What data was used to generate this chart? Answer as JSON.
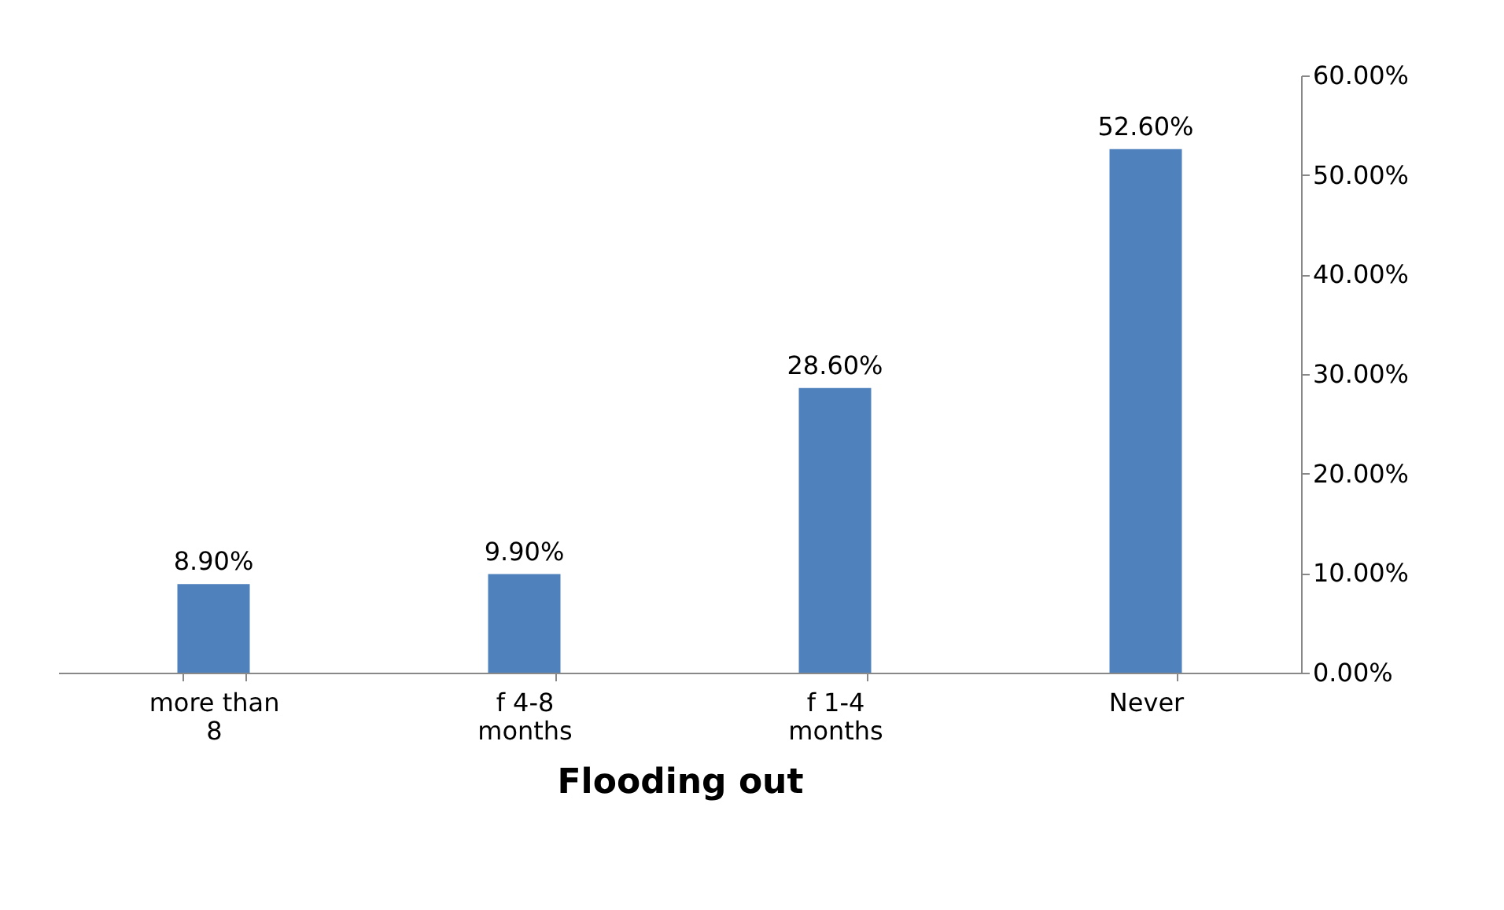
{
  "chart_data": {
    "type": "bar",
    "xlabel": "Flooding out",
    "categories": [
      "more than 8",
      "f 4-8 months",
      "f 1-4 months",
      "Never"
    ],
    "values": [
      8.9,
      9.9,
      28.6,
      52.6
    ],
    "color": "#4f81bd",
    "value_labels": [
      "8.90%",
      "9.90%",
      "28.60%",
      "52.60%"
    ],
    "ylim": [
      0,
      60
    ],
    "yticks": [
      {
        "value": 0,
        "label": "0.00%"
      },
      {
        "value": 10,
        "label": "10.00%"
      },
      {
        "value": 20,
        "label": "20.00%"
      },
      {
        "value": 30,
        "label": "30.00%"
      },
      {
        "value": 40,
        "label": "40.00%"
      },
      {
        "value": 50,
        "label": "50.00%"
      },
      {
        "value": 60,
        "label": "60.00%"
      }
    ],
    "grid": false
  }
}
